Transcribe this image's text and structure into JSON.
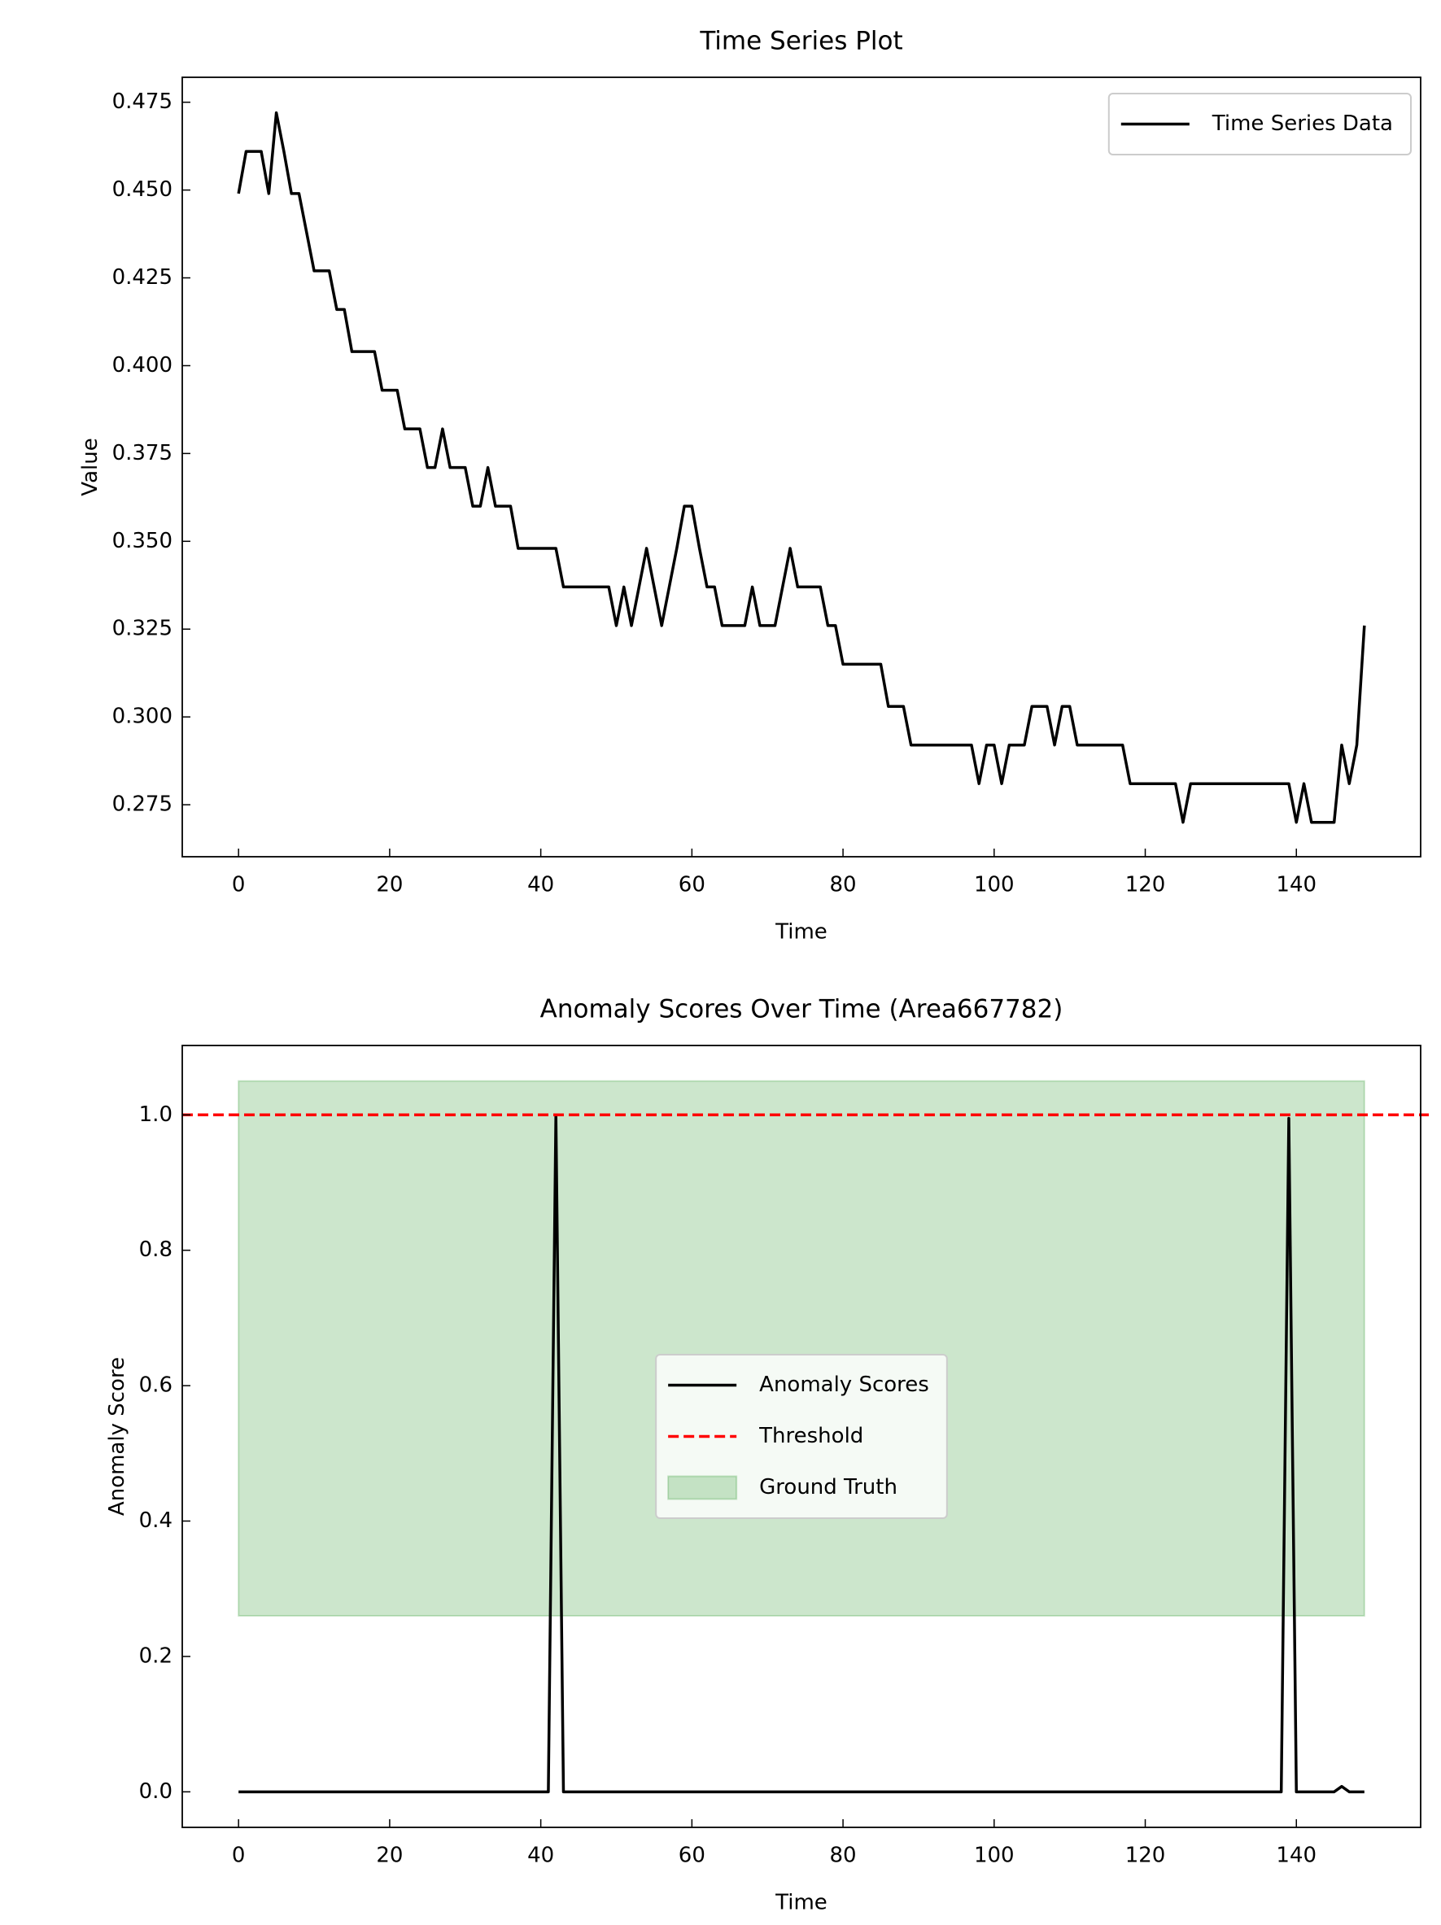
{
  "chart_data": [
    {
      "type": "line",
      "title": "Time Series Plot",
      "xlabel": "Time",
      "ylabel": "Value",
      "x": [
        0,
        1,
        2,
        3,
        4,
        5,
        6,
        7,
        8,
        9,
        10,
        11,
        12,
        13,
        14,
        15,
        16,
        17,
        18,
        19,
        20,
        21,
        22,
        23,
        24,
        25,
        26,
        27,
        28,
        29,
        30,
        31,
        32,
        33,
        34,
        35,
        36,
        37,
        38,
        39,
        40,
        41,
        42,
        43,
        44,
        45,
        46,
        47,
        48,
        49,
        50,
        51,
        52,
        53,
        54,
        55,
        56,
        57,
        58,
        59,
        60,
        61,
        62,
        63,
        64,
        65,
        66,
        67,
        68,
        69,
        70,
        71,
        72,
        73,
        74,
        75,
        76,
        77,
        78,
        79,
        80,
        81,
        82,
        83,
        84,
        85,
        86,
        87,
        88,
        89,
        90,
        91,
        92,
        93,
        94,
        95,
        96,
        97,
        98,
        99,
        100,
        101,
        102,
        103,
        104,
        105,
        106,
        107,
        108,
        109,
        110,
        111,
        112,
        113,
        114,
        115,
        116,
        117,
        118,
        119,
        120,
        121,
        122,
        123,
        124,
        125,
        126,
        127,
        128,
        129,
        130,
        131,
        132,
        133,
        134,
        135,
        136,
        137,
        138,
        139,
        140,
        141,
        142,
        143,
        144,
        145,
        146,
        147,
        148,
        149
      ],
      "series": [
        {
          "name": "Time Series Data",
          "color": "#000000",
          "values": [
            0.449,
            0.461,
            0.461,
            0.461,
            0.449,
            0.472,
            0.461,
            0.449,
            0.449,
            0.438,
            0.427,
            0.427,
            0.427,
            0.416,
            0.416,
            0.404,
            0.404,
            0.404,
            0.404,
            0.393,
            0.393,
            0.393,
            0.382,
            0.382,
            0.382,
            0.371,
            0.371,
            0.382,
            0.371,
            0.371,
            0.371,
            0.36,
            0.36,
            0.371,
            0.36,
            0.36,
            0.36,
            0.348,
            0.348,
            0.348,
            0.348,
            0.348,
            0.348,
            0.337,
            0.337,
            0.337,
            0.337,
            0.337,
            0.337,
            0.337,
            0.326,
            0.337,
            0.326,
            0.337,
            0.348,
            0.337,
            0.326,
            0.337,
            0.348,
            0.36,
            0.36,
            0.348,
            0.337,
            0.337,
            0.326,
            0.326,
            0.326,
            0.326,
            0.337,
            0.326,
            0.326,
            0.326,
            0.337,
            0.348,
            0.337,
            0.337,
            0.337,
            0.337,
            0.326,
            0.326,
            0.315,
            0.315,
            0.315,
            0.315,
            0.315,
            0.315,
            0.303,
            0.303,
            0.303,
            0.292,
            0.292,
            0.292,
            0.292,
            0.292,
            0.292,
            0.292,
            0.292,
            0.292,
            0.281,
            0.292,
            0.292,
            0.281,
            0.292,
            0.292,
            0.292,
            0.303,
            0.303,
            0.303,
            0.292,
            0.303,
            0.303,
            0.292,
            0.292,
            0.292,
            0.292,
            0.292,
            0.292,
            0.292,
            0.281,
            0.281,
            0.281,
            0.281,
            0.281,
            0.281,
            0.281,
            0.27,
            0.281,
            0.281,
            0.281,
            0.281,
            0.281,
            0.281,
            0.281,
            0.281,
            0.281,
            0.281,
            0.281,
            0.281,
            0.281,
            0.281,
            0.27,
            0.281,
            0.27,
            0.27,
            0.27,
            0.27,
            0.292,
            0.281,
            0.292,
            0.326
          ]
        }
      ],
      "xlim": [
        -7.45,
        156.45
      ],
      "xticks": [
        0,
        20,
        40,
        60,
        80,
        100,
        120,
        140
      ],
      "ylim": [
        0.2602,
        0.4821
      ],
      "yticks": [
        {
          "value": 0.275,
          "label": "0.275"
        },
        {
          "value": 0.3,
          "label": "0.300"
        },
        {
          "value": 0.325,
          "label": "0.325"
        },
        {
          "value": 0.35,
          "label": "0.350"
        },
        {
          "value": 0.375,
          "label": "0.375"
        },
        {
          "value": 0.4,
          "label": "0.400"
        },
        {
          "value": 0.425,
          "label": "0.425"
        },
        {
          "value": 0.45,
          "label": "0.450"
        },
        {
          "value": 0.475,
          "label": "0.475"
        }
      ],
      "legend": "upper right"
    },
    {
      "type": "line",
      "title": "Anomaly Scores Over Time (Area667782)",
      "xlabel": "Time",
      "ylabel": "Anomaly Score",
      "x": [
        0,
        1,
        2,
        3,
        4,
        5,
        6,
        7,
        8,
        9,
        10,
        11,
        12,
        13,
        14,
        15,
        16,
        17,
        18,
        19,
        20,
        21,
        22,
        23,
        24,
        25,
        26,
        27,
        28,
        29,
        30,
        31,
        32,
        33,
        34,
        35,
        36,
        37,
        38,
        39,
        40,
        41,
        42,
        43,
        44,
        45,
        46,
        47,
        48,
        49,
        50,
        51,
        52,
        53,
        54,
        55,
        56,
        57,
        58,
        59,
        60,
        61,
        62,
        63,
        64,
        65,
        66,
        67,
        68,
        69,
        70,
        71,
        72,
        73,
        74,
        75,
        76,
        77,
        78,
        79,
        80,
        81,
        82,
        83,
        84,
        85,
        86,
        87,
        88,
        89,
        90,
        91,
        92,
        93,
        94,
        95,
        96,
        97,
        98,
        99,
        100,
        101,
        102,
        103,
        104,
        105,
        106,
        107,
        108,
        109,
        110,
        111,
        112,
        113,
        114,
        115,
        116,
        117,
        118,
        119,
        120,
        121,
        122,
        123,
        124,
        125,
        126,
        127,
        128,
        129,
        130,
        131,
        132,
        133,
        134,
        135,
        136,
        137,
        138,
        139,
        140,
        141,
        142,
        143,
        144,
        145,
        146,
        147,
        148,
        149
      ],
      "series": [
        {
          "name": "Anomaly Scores",
          "color": "#000000",
          "values": [
            0,
            0,
            0,
            0,
            0,
            0,
            0,
            0,
            0,
            0,
            0,
            0,
            0,
            0,
            0,
            0,
            0,
            0,
            0,
            0,
            0,
            0,
            0,
            0,
            0,
            0,
            0,
            0,
            0,
            0,
            0,
            0,
            0,
            0,
            0,
            0,
            0,
            0,
            0,
            0,
            0,
            0,
            1,
            0,
            0,
            0,
            0,
            0,
            0,
            0,
            0,
            0,
            0,
            0,
            0,
            0,
            0,
            0,
            0,
            0,
            0,
            0,
            0,
            0,
            0,
            0,
            0,
            0,
            0,
            0,
            0,
            0,
            0,
            0,
            0,
            0,
            0,
            0,
            0,
            0,
            0,
            0,
            0,
            0,
            0,
            0,
            0,
            0,
            0,
            0,
            0,
            0,
            0,
            0,
            0,
            0,
            0,
            0,
            0,
            0,
            0,
            0,
            0,
            0,
            0,
            0,
            0,
            0,
            0,
            0,
            0,
            0,
            0,
            0,
            0,
            0,
            0,
            0,
            0,
            0,
            0,
            0,
            0,
            0,
            0,
            0,
            0,
            0,
            0,
            0,
            0,
            0,
            0,
            0,
            0,
            0,
            0,
            0,
            0,
            0.995,
            0,
            0,
            0,
            0,
            0,
            0,
            0.008,
            0,
            0,
            0
          ]
        }
      ],
      "threshold": {
        "name": "Threshold",
        "value": 1.0,
        "color": "#ff0000"
      },
      "ground_truth": {
        "name": "Ground Truth",
        "x": [
          0,
          149
        ],
        "y": [
          0.26,
          1.05
        ],
        "color": "#008000"
      },
      "xlim": [
        -7.45,
        156.45
      ],
      "xticks": [
        0,
        20,
        40,
        60,
        80,
        100,
        120,
        140
      ],
      "ylim": [
        -0.0525,
        1.1025
      ],
      "yticks": [
        {
          "value": 0,
          "label": "0.0"
        },
        {
          "value": 0.2,
          "label": "0.2"
        },
        {
          "value": 0.4,
          "label": "0.4"
        },
        {
          "value": 0.6,
          "label": "0.6"
        },
        {
          "value": 0.8,
          "label": "0.8"
        },
        {
          "value": 1.0,
          "label": "1.0"
        }
      ],
      "legend": "center"
    }
  ]
}
